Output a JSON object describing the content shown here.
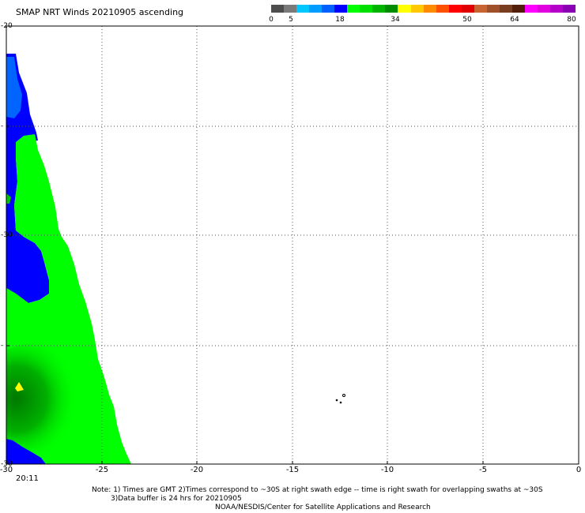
{
  "title": "SMAP NRT Winds 20210905 ascending",
  "colorbar": {
    "ticks": [
      "0",
      "5",
      "18",
      "34",
      "50",
      "64",
      "80"
    ],
    "colors": [
      "#4d4d4d",
      "#7a7a7a",
      "#00c8ff",
      "#009cff",
      "#0060ff",
      "#0000ff",
      "#00ff00",
      "#00e000",
      "#00b400",
      "#008c00",
      "#ffff00",
      "#ffc800",
      "#ff8c00",
      "#ff5000",
      "#ff0000",
      "#e00000",
      "#c86432",
      "#a05028",
      "#783c1e",
      "#501e0a",
      "#ff00ff",
      "#e000e0",
      "#b400c8",
      "#8c00b4"
    ]
  },
  "axes": {
    "x_ticks": [
      "-30",
      "-25",
      "-20",
      "-15",
      "-10",
      "-5",
      "0"
    ],
    "y_ticks": [
      "-20",
      "-",
      "-30",
      "-",
      "-30"
    ],
    "xlim": [
      -30,
      0
    ],
    "colors": {
      "grid": "#555555",
      "frame": "#000000"
    }
  },
  "map": {
    "swath_colors": {
      "blue": "#0000ff",
      "light_blue": "#0064ff",
      "green": "#00ff00",
      "mid_green": "#00c800",
      "dark_green": "#008000",
      "yellow": "#ffff00"
    }
  },
  "time_label": "20:11",
  "notes": {
    "line1": "Note: 1) Times are GMT 2)Times correspond to ~30S at right swath edge -- time is right swath for overlapping swaths at ~30S",
    "line2": "3)Data buffer is 24 hrs for 20210905",
    "line3": "NOAA/NESDIS/Center for Satellite Applications and Research"
  }
}
